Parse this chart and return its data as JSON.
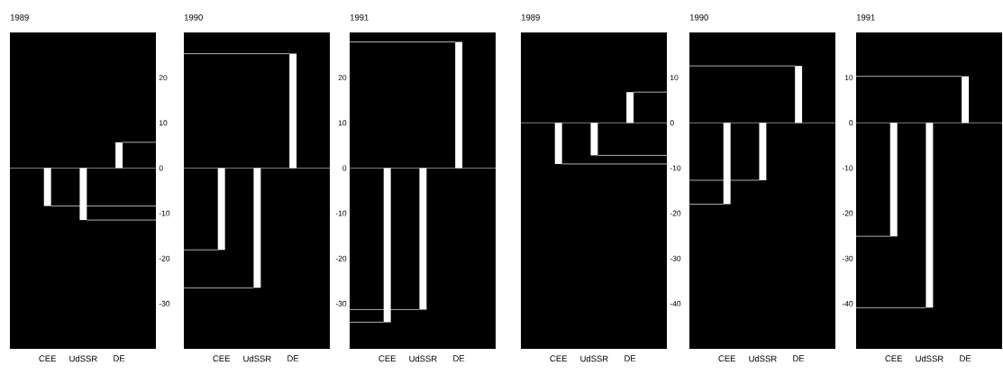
{
  "chart_data": [
    {
      "type": "bar",
      "title": "1989",
      "categories": [
        "CEE",
        "UdSSR",
        "DE"
      ],
      "values": [
        -8.4,
        -11.5,
        5.7
      ],
      "color": "#ffffff",
      "ylim": [
        -40,
        30
      ],
      "yticks": [
        -30,
        -20,
        -10,
        0,
        10,
        20
      ],
      "ref_lines": [
        {
          "axis": "y",
          "value": -8.4,
          "color": "#d9d9d9"
        },
        {
          "axis": "y",
          "value": -11.5,
          "color": "#d9d9d9"
        },
        {
          "axis": "y",
          "value": 5.7,
          "color": "#d9d9d9"
        }
      ]
    },
    {
      "type": "bar",
      "title": "1990",
      "categories": [
        "CEE",
        "UdSSR",
        "DE"
      ],
      "values": [
        -18.1,
        -26.5,
        25.3
      ],
      "color": "#ffffff",
      "ylim": [
        -40,
        30
      ],
      "tick_labels": "x",
      "ref_lines": [
        {
          "axis": "y",
          "value": -18.1,
          "color": "#d9d9d9"
        },
        {
          "axis": "y",
          "value": -26.5,
          "color": "#d9d9d9"
        },
        {
          "axis": "y",
          "value": 25.3,
          "color": "#d9d9d9"
        }
      ]
    },
    {
      "type": "bar",
      "title": "1991",
      "categories": [
        "CEE",
        "UdSSR",
        "DE"
      ],
      "values": [
        -34.1,
        -31.3,
        27.9
      ],
      "color": "#ffffff",
      "ylim": [
        -40,
        30
      ],
      "yticks": [
        -30,
        -20,
        -10,
        0,
        10,
        20
      ],
      "ref_lines": [
        {
          "axis": "y",
          "value": -34.1,
          "color": "#d9d9d9"
        },
        {
          "axis": "y",
          "value": -31.3,
          "color": "#d9d9d9"
        },
        {
          "axis": "y",
          "value": 27.9,
          "color": "#d9d9d9"
        }
      ]
    },
    {
      "type": "bar",
      "title": "1989",
      "categories": [
        "CEE",
        "UdSSR",
        "DE"
      ],
      "values": [
        -9.1,
        -7.2,
        6.8
      ],
      "color": "#ffffff",
      "ylim": [
        -50,
        20
      ],
      "yticks": [
        -40,
        -30,
        -20,
        -10,
        0,
        10
      ],
      "ref_lines": [
        {
          "axis": "y",
          "value": -9.1,
          "color": "#d9d9d9"
        },
        {
          "axis": "y",
          "value": -7.2,
          "color": "#d9d9d9"
        },
        {
          "axis": "y",
          "value": 6.8,
          "color": "#d9d9d9"
        }
      ]
    },
    {
      "type": "bar",
      "title": "1990",
      "categories": [
        "CEE",
        "UdSSR",
        "DE"
      ],
      "values": [
        -18,
        -12.7,
        12.6
      ],
      "color": "#ffffff",
      "ylim": [
        -50,
        20
      ],
      "tick_labels": "x",
      "ref_lines": [
        {
          "axis": "y",
          "value": -18,
          "color": "#d9d9d9"
        },
        {
          "axis": "y",
          "value": -12.7,
          "color": "#d9d9d9"
        },
        {
          "axis": "y",
          "value": 12.6,
          "color": "#d9d9d9"
        }
      ]
    },
    {
      "type": "bar",
      "title": "1991",
      "categories": [
        "CEE",
        "UdSSR",
        "DE"
      ],
      "values": [
        -25.1,
        -40.9,
        10.3
      ],
      "color": "#ffffff",
      "ylim": [
        -50,
        20
      ],
      "yticks": [
        -40,
        -30,
        -20,
        -10,
        0,
        10
      ],
      "ref_lines": [
        {
          "axis": "y",
          "value": -25.1,
          "color": "#d9d9d9"
        },
        {
          "axis": "y",
          "value": -40.9,
          "color": "#d9d9d9"
        },
        {
          "axis": "y",
          "value": 10.3,
          "color": "#d9d9d9"
        }
      ]
    }
  ]
}
